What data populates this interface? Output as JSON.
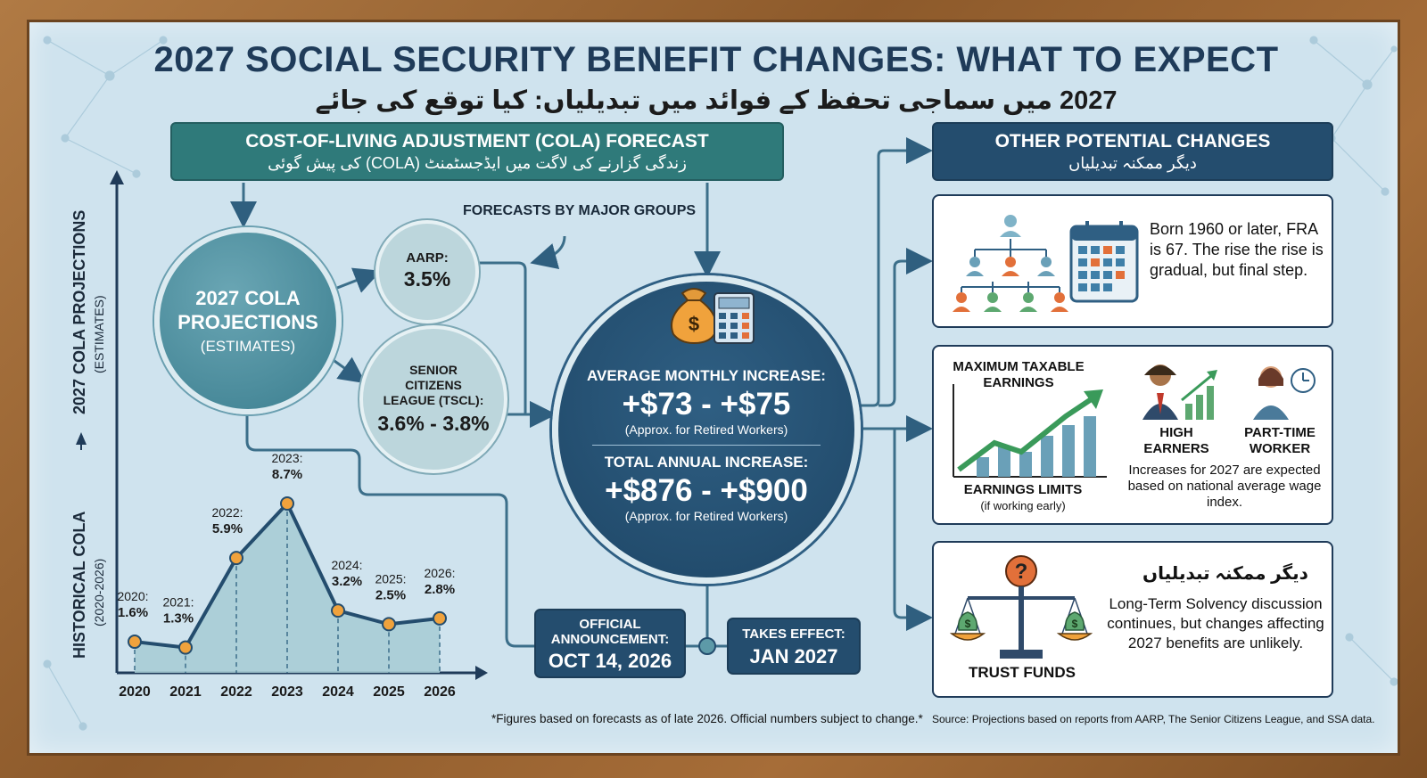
{
  "title": "2027 SOCIAL SECURITY BENEFIT CHANGES: WHAT TO EXPECT",
  "subtitle_ur": "2027 میں سماجی تحفظ کے فوائد میں تبدیلیاں: کیا توقع کی جائے",
  "cola_header": {
    "en": "COST-OF-LIVING ADJUSTMENT (COLA) FORECAST",
    "ur": "زندگی گزارنے کی لاگت میں ایڈجسٹمنٹ (COLA) کی پیش گوئی"
  },
  "other_header": {
    "en": "OTHER POTENTIAL CHANGES",
    "ur": "دیگر ممکنہ تبدیلیاں"
  },
  "projections": {
    "title": "2027 COLA PROJECTIONS",
    "sub": "(ESTIMATES)"
  },
  "forecasts_label": "FORECASTS BY MAJOR GROUPS",
  "aarp": {
    "label": "AARP:",
    "value": "3.5%"
  },
  "tscl": {
    "label": "SENIOR CITIZENS LEAGUE (TSCL):",
    "value": "3.6% - 3.8%"
  },
  "main": {
    "monthly_label": "AVERAGE MONTHLY INCREASE:",
    "monthly_value": "+$73 - +$75",
    "monthly_note": "(Approx. for Retired Workers)",
    "annual_label": "TOTAL ANNUAL INCREASE:",
    "annual_value": "+$876 - +$900",
    "annual_note": "(Approx. for Retired Workers)"
  },
  "timeline": {
    "announcement_label": "OFFICIAL ANNOUNCEMENT:",
    "announcement_date": "OCT 14, 2026",
    "effect_label": "TAKES EFFECT:",
    "effect_date": "JAN 2027"
  },
  "axis_labels": {
    "projections": "2027 COLA PROJECTIONS",
    "projections_sub": "(ESTIMATES)",
    "historical": "HISTORICAL COLA",
    "historical_sub": "(2020-2026)"
  },
  "panel1": {
    "text": "Born 1960 or later, FRA is 67. The rise the rise is gradual, but final step."
  },
  "panel2": {
    "max_taxable": "MAXIMUM TAXABLE EARNINGS",
    "earnings_limits": "EARNINGS LIMITS",
    "earnings_sub": "(if working early)",
    "high_earners": "HIGH EARNERS",
    "part_time": "PART-TIME WORKER",
    "increases": "Increases for 2027 are expected based on national average wage index."
  },
  "panel3": {
    "ur": "دیگر ممکنہ تبدیلیاں",
    "text": "Long-Term Solvency discussion continues, but changes affecting 2027 benefits are unlikely.",
    "trust_funds": "TRUST FUNDS"
  },
  "footer": {
    "note": "*Figures based on forecasts as of late 2026. Official numbers subject to change.*",
    "source": "Source: Projections based on reports from AARP, The Senior Citizens League, and SSA data."
  },
  "colors": {
    "teal": "#2f7a7a",
    "navy": "#244d6e",
    "background": "#cfe3ee",
    "point_fill": "#f0a23c",
    "line": "#244d6e"
  },
  "chart_data": {
    "type": "area",
    "categories": [
      "2020",
      "2021",
      "2022",
      "2023",
      "2024",
      "2025",
      "2026"
    ],
    "series": [
      {
        "values": [
          1.6,
          1.3,
          5.9,
          8.7,
          3.2,
          2.5,
          2.8
        ]
      }
    ],
    "point_labels": [
      [
        "2020:",
        "1.6%"
      ],
      [
        "2021:",
        "1.3%"
      ],
      [
        "2022:",
        "5.9%"
      ],
      [
        "2023:",
        "8.7%"
      ],
      [
        "2024:",
        "3.2%"
      ],
      [
        "2025:",
        "2.5%"
      ],
      [
        "2026:",
        "2.8%"
      ]
    ],
    "title": "",
    "xlabel": "",
    "ylabel": "HISTORICAL COLA",
    "ylim": [
      0,
      10
    ],
    "grid": false
  }
}
